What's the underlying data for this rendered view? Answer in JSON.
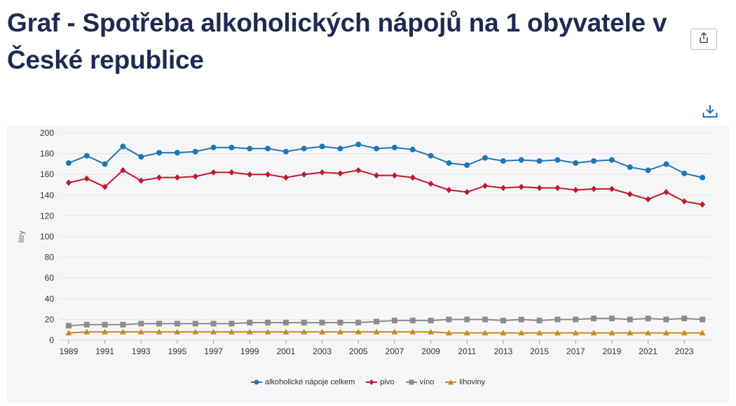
{
  "page": {
    "title": "Graf - Spotřeba alkoholických nápojů na 1 obyvatele v České republice",
    "share_icon": "share-icon",
    "download_icon": "download-icon"
  },
  "chart_data": {
    "type": "line",
    "title": "",
    "ylabel": "litry",
    "xlabel": "",
    "ylim": [
      0,
      200
    ],
    "yticks": [
      0,
      20,
      40,
      60,
      80,
      100,
      120,
      140,
      160,
      180,
      200
    ],
    "xtick_labels": [
      "1989",
      "1991",
      "1993",
      "1995",
      "1997",
      "1999",
      "2001",
      "2003",
      "2005",
      "2007",
      "2009",
      "2011",
      "2013",
      "2015",
      "2017",
      "2019",
      "2021",
      "2023"
    ],
    "grid": true,
    "legend_position": "bottom",
    "x": [
      1989,
      1990,
      1991,
      1992,
      1993,
      1994,
      1995,
      1996,
      1997,
      1998,
      1999,
      2000,
      2001,
      2002,
      2003,
      2004,
      2005,
      2006,
      2007,
      2008,
      2009,
      2010,
      2011,
      2012,
      2013,
      2014,
      2015,
      2016,
      2017,
      2018,
      2019,
      2020,
      2021,
      2022,
      2023,
      2024
    ],
    "series": [
      {
        "name": "alkoholické nápoje celkem",
        "color": "#1f77b4",
        "marker": "circle",
        "values": [
          171,
          178,
          170,
          187,
          177,
          181,
          181,
          182,
          186,
          186,
          185,
          185,
          182,
          185,
          187,
          185,
          189,
          185,
          186,
          184,
          178,
          171,
          169,
          176,
          173,
          174,
          173,
          174,
          171,
          173,
          174,
          167,
          164,
          170,
          161,
          157
        ]
      },
      {
        "name": "pivo",
        "color": "#c0182b",
        "marker": "diamond",
        "values": [
          152,
          156,
          148,
          164,
          154,
          157,
          157,
          158,
          162,
          162,
          160,
          160,
          157,
          160,
          162,
          161,
          164,
          159,
          159,
          157,
          151,
          145,
          143,
          149,
          147,
          148,
          147,
          147,
          145,
          146,
          146,
          141,
          136,
          143,
          134,
          131
        ]
      },
      {
        "name": "víno",
        "color": "#8c8c8c",
        "marker": "square",
        "values": [
          14,
          15,
          15,
          15,
          16,
          16,
          16,
          16,
          16,
          16,
          17,
          17,
          17,
          17,
          17,
          17,
          17,
          18,
          19,
          19,
          19,
          20,
          20,
          20,
          19,
          20,
          19,
          20,
          20,
          21,
          21,
          20,
          21,
          20,
          21,
          20
        ]
      },
      {
        "name": "lihoviny",
        "color": "#c38b20",
        "marker": "triangle",
        "values": [
          7,
          8,
          8,
          8,
          8,
          8,
          8,
          8,
          8,
          8,
          8,
          8,
          8,
          8,
          8,
          8,
          8,
          8,
          8,
          8,
          8,
          7,
          7,
          7,
          7,
          7,
          7,
          7,
          7,
          7,
          7,
          7,
          7,
          7,
          7,
          7
        ]
      }
    ]
  }
}
